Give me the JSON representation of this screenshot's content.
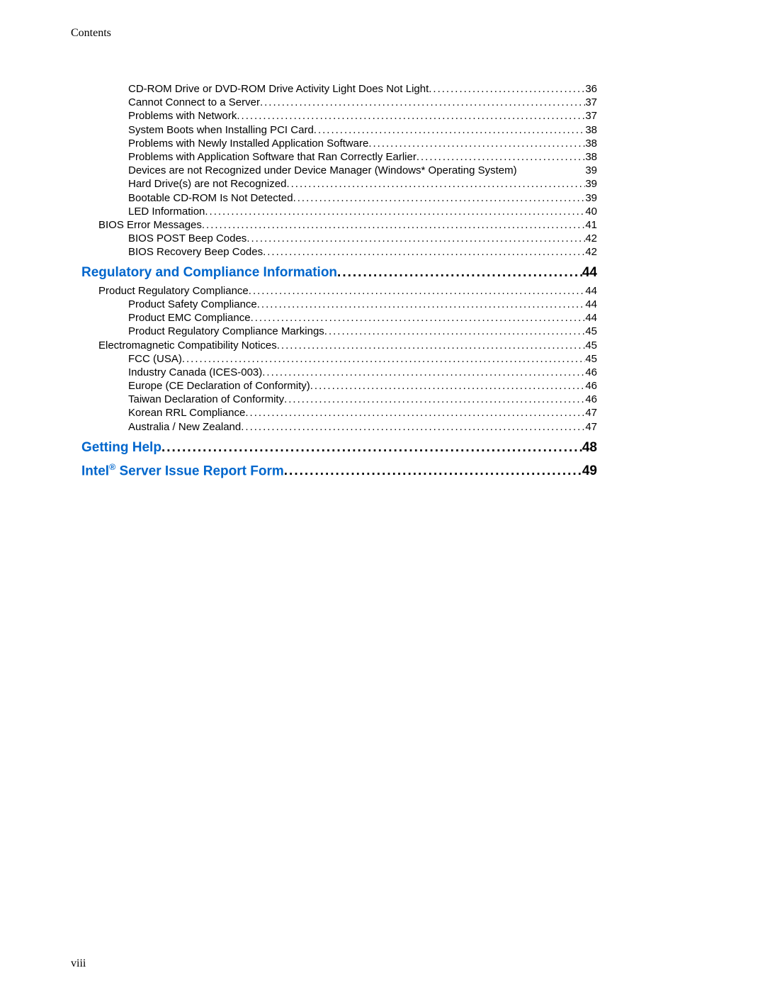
{
  "header": "Contents",
  "page_number": "viii",
  "colors": {
    "heading_link": "#0066cc",
    "text": "#000000",
    "background": "#ffffff"
  },
  "fonts": {
    "body": "Arial, Helvetica, sans-serif",
    "header": "Times New Roman, Times, serif",
    "body_size_pt": 11,
    "heading_size_pt": 14
  },
  "toc": [
    {
      "level": 3,
      "title": "CD-ROM Drive or DVD-ROM Drive Activity Light Does Not Light ",
      "page": "36"
    },
    {
      "level": 3,
      "title": "Cannot Connect to a Server",
      "page": "37"
    },
    {
      "level": 3,
      "title": "Problems with Network",
      "page": "37"
    },
    {
      "level": 3,
      "title": "System Boots when Installing PCI Card",
      "page": "38"
    },
    {
      "level": 3,
      "title": "Problems with Newly Installed Application Software",
      "page": "38"
    },
    {
      "level": 3,
      "title": "Problems with Application Software that Ran Correctly Earlier",
      "page": "38"
    },
    {
      "level": 3,
      "title": "Devices are not Recognized under Device Manager (Windows* Operating System)",
      "page": "39",
      "no_leader": true
    },
    {
      "level": 3,
      "title": "Hard Drive(s) are not Recognized",
      "page": "39"
    },
    {
      "level": 3,
      "title": "Bootable CD-ROM Is Not Detected",
      "page": "39"
    },
    {
      "level": 3,
      "title": "LED Information ",
      "page": "40"
    },
    {
      "level": 2,
      "title": "BIOS Error Messages ",
      "page": "41"
    },
    {
      "level": 3,
      "title": "BIOS POST Beep Codes ",
      "page": "42"
    },
    {
      "level": 3,
      "title": "BIOS Recovery Beep Codes",
      "page": "42"
    },
    {
      "level": 1,
      "title": "Regulatory and Compliance Information",
      "page": "44"
    },
    {
      "level": 2,
      "title": "Product Regulatory Compliance ",
      "page": "44"
    },
    {
      "level": 3,
      "title": "Product Safety Compliance",
      "page": "44"
    },
    {
      "level": 3,
      "title": "Product EMC Compliance",
      "page": "44"
    },
    {
      "level": 3,
      "title": "Product Regulatory Compliance Markings ",
      "page": "45"
    },
    {
      "level": 2,
      "title": "Electromagnetic Compatibility Notices",
      "page": "45"
    },
    {
      "level": 3,
      "title": "FCC (USA) ",
      "page": "45"
    },
    {
      "level": 3,
      "title": "Industry Canada (ICES-003)",
      "page": "46"
    },
    {
      "level": 3,
      "title": "Europe (CE Declaration of Conformity)",
      "page": "46"
    },
    {
      "level": 3,
      "title": "Taiwan Declaration of Conformity ",
      "page": "46"
    },
    {
      "level": 3,
      "title": "Korean RRL Compliance",
      "page": "47"
    },
    {
      "level": 3,
      "title": "Australia / New Zealand ",
      "page": "47"
    },
    {
      "level": 1,
      "title": "Getting Help",
      "page": "48"
    },
    {
      "level": 1,
      "title_html": "Intel<sup>®</sup> Server Issue Report Form",
      "title": "Intel® Server Issue Report Form",
      "page": "49"
    }
  ]
}
